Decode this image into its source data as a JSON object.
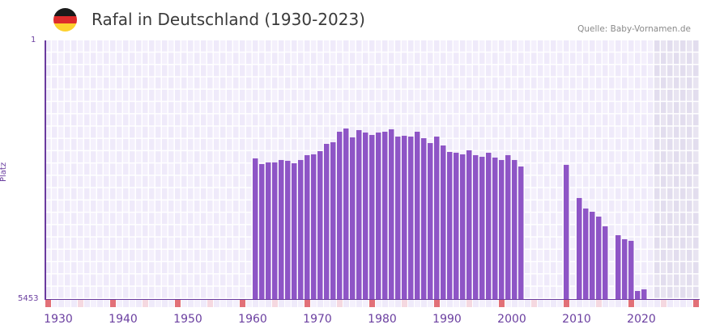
{
  "header": {
    "title": "Rafal in Deutschland (1930-2023)",
    "source": "Quelle: Baby-Vornamen.de",
    "flag_colors": [
      "#1a1a1a",
      "#dd2b2b",
      "#fdd12e"
    ]
  },
  "axis": {
    "y_top_label": "1",
    "y_bottom_label": "5453",
    "y_title": "Platz"
  },
  "colors": {
    "bar": "#8e55c6",
    "grid_cell_a": "#efeafa",
    "grid_cell_b": "#f4f0fc",
    "future_cell": "#e4dff0",
    "decade_marker": "#e27078",
    "half_decade_marker": "#f5d8e0",
    "axis": "#6a3a9e"
  },
  "chart_data": {
    "type": "bar",
    "title": "Rafal in Deutschland (1930-2023)",
    "xlabel": "",
    "ylabel": "Platz",
    "ylim": [
      5453,
      1
    ],
    "y_inverted": true,
    "x_range": [
      1928,
      2028
    ],
    "future_shaded_from": 2022,
    "xticks": [
      1930,
      1940,
      1950,
      1960,
      1970,
      1980,
      1990,
      2000,
      2010,
      2020
    ],
    "grid": true,
    "legend": null,
    "categories": [
      1960,
      1961,
      1962,
      1963,
      1964,
      1965,
      1966,
      1967,
      1968,
      1969,
      1970,
      1971,
      1972,
      1973,
      1974,
      1975,
      1976,
      1977,
      1978,
      1979,
      1980,
      1981,
      1982,
      1983,
      1984,
      1985,
      1986,
      1987,
      1988,
      1989,
      1990,
      1991,
      1992,
      1993,
      1994,
      1995,
      1996,
      1997,
      1998,
      1999,
      2000,
      2001,
      2008,
      2010,
      2011,
      2012,
      2013,
      2014,
      2016,
      2017,
      2018,
      2019,
      2020
    ],
    "values": [
      2488,
      2607,
      2573,
      2573,
      2522,
      2539,
      2590,
      2522,
      2420,
      2403,
      2335,
      2182,
      2148,
      1926,
      1858,
      2045,
      1892,
      1943,
      1994,
      1943,
      1926,
      1875,
      2028,
      2011,
      2028,
      1926,
      2062,
      2165,
      2028,
      2216,
      2352,
      2369,
      2403,
      2318,
      2420,
      2454,
      2369,
      2471,
      2522,
      2420,
      2522,
      2659,
      2625,
      3323,
      3545,
      3613,
      3715,
      3920,
      4107,
      4192,
      4226,
      5283,
      5249
    ]
  }
}
